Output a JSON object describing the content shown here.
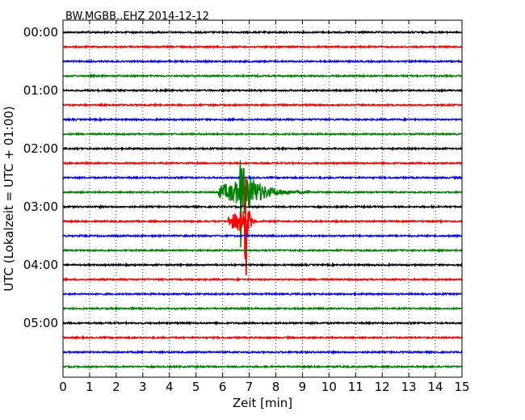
{
  "chart_data": {
    "type": "line",
    "title": "BW.MGBB..EHZ 2014-12-12",
    "xlabel": "Zeit  [min]",
    "ylabel": "UTC (Lokalzeit = UTC + 01:00)",
    "xlim": [
      0,
      15
    ],
    "x_ticks": [
      "0",
      "1",
      "2",
      "3",
      "4",
      "5",
      "6",
      "7",
      "8",
      "9",
      "10",
      "11",
      "12",
      "13",
      "14",
      "15"
    ],
    "y_ticks": [
      "00:00",
      "01:00",
      "02:00",
      "03:00",
      "04:00",
      "05:00"
    ],
    "grid": "vertical dotted",
    "trace_interval_min": 15,
    "trace_colors": [
      "#000000",
      "#ff0000",
      "#0000ff",
      "#008000"
    ],
    "traces": [
      {
        "start": "00:00"
      },
      {
        "start": "00:15"
      },
      {
        "start": "00:30"
      },
      {
        "start": "00:45"
      },
      {
        "start": "01:00"
      },
      {
        "start": "01:15"
      },
      {
        "start": "01:30"
      },
      {
        "start": "01:45"
      },
      {
        "start": "02:00"
      },
      {
        "start": "02:15"
      },
      {
        "start": "02:30"
      },
      {
        "start": "02:45",
        "event": {
          "onset_min": 5.8,
          "peak_min": 6.7,
          "end_min": 9.5
        }
      },
      {
        "start": "03:00"
      },
      {
        "start": "03:15",
        "event": {
          "onset_min": 6.2,
          "peak_min": 6.9,
          "end_min": 7.4
        }
      },
      {
        "start": "03:30"
      },
      {
        "start": "03:45"
      },
      {
        "start": "04:00"
      },
      {
        "start": "04:15"
      },
      {
        "start": "04:30"
      },
      {
        "start": "04:45"
      },
      {
        "start": "05:00"
      },
      {
        "start": "05:15"
      },
      {
        "start": "05:30"
      },
      {
        "start": "05:45"
      }
    ]
  }
}
